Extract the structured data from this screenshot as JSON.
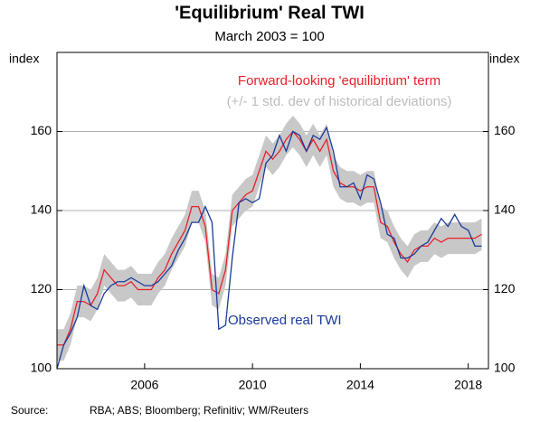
{
  "chart_data": {
    "type": "line",
    "title": "'Equilibrium' Real TWI",
    "subtitle": "March 2003 = 100",
    "y_label": "index",
    "y2_label": "index",
    "source_label": "Source:",
    "source": "RBA; ABS; Bloomberg; Refinitiv; WM/Reuters",
    "x": [
      2002.75,
      2003,
      2003.25,
      2003.5,
      2003.75,
      2004,
      2004.25,
      2004.5,
      2004.75,
      2005,
      2005.25,
      2005.5,
      2005.75,
      2006,
      2006.25,
      2006.5,
      2006.75,
      2007,
      2007.25,
      2007.5,
      2007.75,
      2008,
      2008.25,
      2008.5,
      2008.75,
      2009,
      2009.25,
      2009.5,
      2009.75,
      2010,
      2010.25,
      2010.5,
      2010.75,
      2011,
      2011.25,
      2011.5,
      2011.75,
      2012,
      2012.25,
      2012.5,
      2012.75,
      2013,
      2013.25,
      2013.5,
      2013.75,
      2014,
      2014.25,
      2014.5,
      2014.75,
      2015,
      2015.25,
      2015.5,
      2015.75,
      2016,
      2016.25,
      2016.5,
      2016.75,
      2017,
      2017.25,
      2017.5,
      2017.75,
      2018,
      2018.25,
      2018.5
    ],
    "band": {
      "name": "(+/- 1 std. dev of historical deviations)",
      "color": "#c8c8c8",
      "upper": [
        110,
        110,
        114,
        121,
        121,
        120,
        123,
        129,
        127,
        125,
        125,
        126,
        124,
        124,
        124,
        127,
        129,
        133,
        136,
        139,
        145,
        145,
        140,
        124,
        123,
        129,
        144,
        146,
        148,
        149,
        154,
        159,
        157,
        159,
        162,
        164,
        162,
        159,
        162,
        159,
        162,
        154,
        151,
        150,
        150,
        149,
        150,
        150,
        141,
        140,
        136,
        133,
        131,
        134,
        135,
        135,
        137,
        136,
        137,
        137,
        137,
        137,
        137,
        138
      ],
      "lower": [
        102,
        102,
        106,
        113,
        113,
        112,
        115,
        121,
        119,
        117,
        117,
        118,
        116,
        116,
        116,
        119,
        121,
        125,
        128,
        131,
        137,
        137,
        132,
        116,
        115,
        121,
        136,
        138,
        140,
        141,
        146,
        151,
        149,
        151,
        154,
        156,
        154,
        151,
        154,
        151,
        154,
        146,
        143,
        142,
        142,
        141,
        142,
        142,
        133,
        132,
        128,
        125,
        123,
        126,
        127,
        127,
        129,
        128,
        129,
        129,
        129,
        129,
        129,
        130
      ]
    },
    "series": [
      {
        "name": "Forward-looking 'equilibrium' term",
        "color": "#e8202a",
        "values": [
          106,
          106,
          110,
          117,
          117,
          116,
          119,
          125,
          123,
          121,
          121,
          122,
          120,
          120,
          120,
          123,
          125,
          129,
          132,
          135,
          141,
          141,
          136,
          120,
          119,
          125,
          140,
          142,
          144,
          145,
          150,
          155,
          153,
          155,
          158,
          160,
          158,
          155,
          158,
          155,
          158,
          150,
          147,
          146,
          146,
          145,
          146,
          146,
          137,
          136,
          132,
          129,
          127,
          130,
          131,
          131,
          133,
          132,
          133,
          133,
          133,
          133,
          133,
          134
        ]
      },
      {
        "name": "Observed real TWI",
        "color": "#1a3a9a",
        "values": [
          100,
          106,
          109,
          113,
          121,
          116,
          115,
          119,
          121,
          122,
          122,
          123,
          122,
          121,
          121,
          122,
          124,
          126,
          130,
          133,
          137,
          137,
          141,
          137,
          110,
          111,
          128,
          142,
          143,
          142,
          143,
          152,
          154,
          159,
          155,
          160,
          159,
          155,
          159,
          158,
          161,
          155,
          146,
          146,
          147,
          143,
          149,
          148,
          142,
          134,
          133,
          128,
          128,
          129,
          131,
          132,
          135,
          138,
          136,
          139,
          136,
          135,
          131,
          131
        ]
      }
    ],
    "xlim": [
      2002.75,
      2018.75
    ],
    "xticks": [
      2006,
      2010,
      2014,
      2018
    ],
    "ylim": [
      100,
      180
    ],
    "yticks": [
      100,
      120,
      140,
      160
    ],
    "y2lim": [
      100,
      180
    ],
    "y2ticks": [
      100,
      120,
      140,
      160
    ],
    "grid": true
  }
}
